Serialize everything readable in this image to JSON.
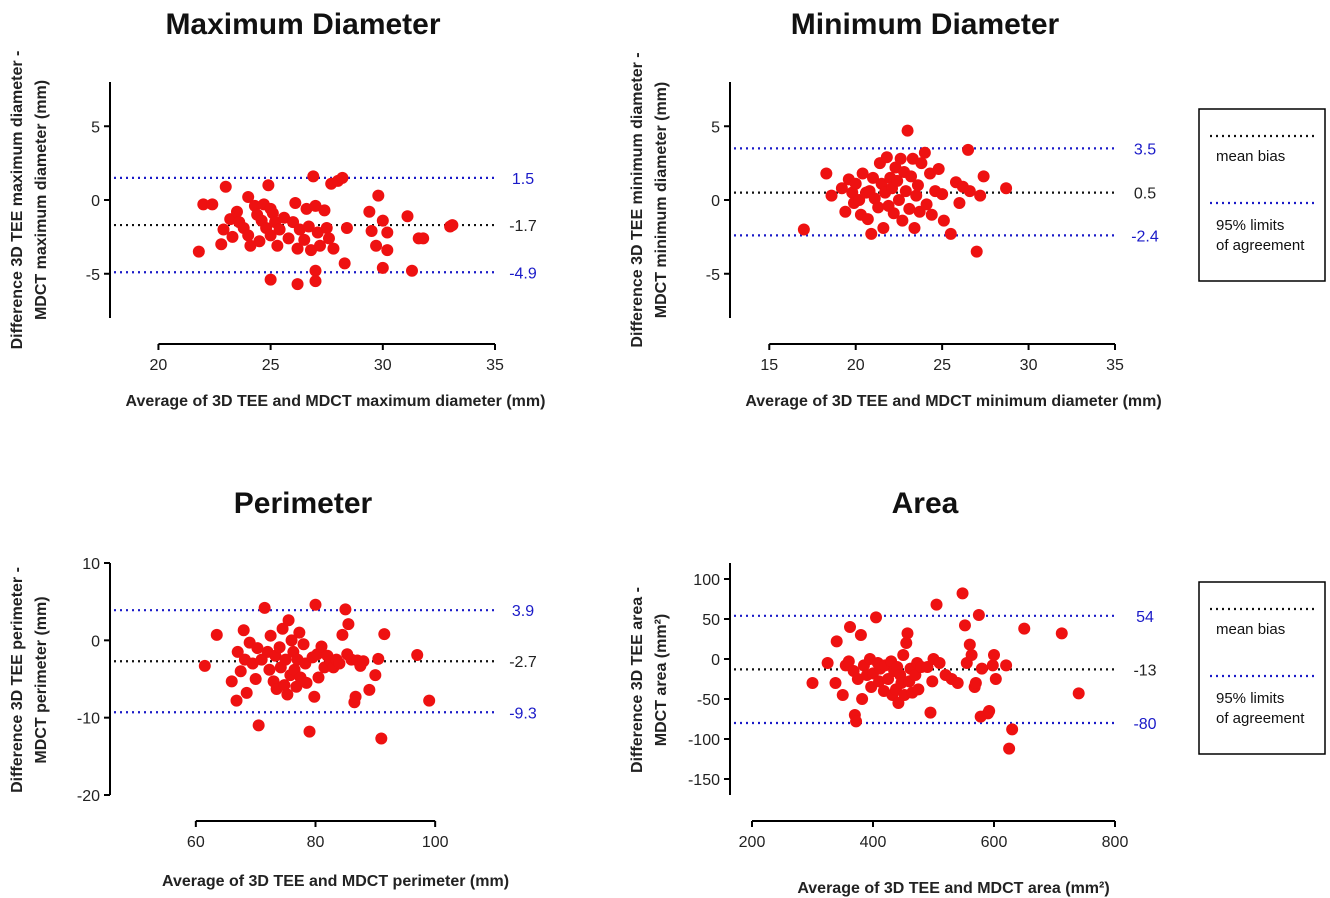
{
  "chart_data": [
    {
      "type": "scatter",
      "title": "Maximum Diameter",
      "xlabel": "Average of 3D TEE and MDCT maximum diameter (mm)",
      "ylabel": [
        "Difference 3D TEE maximum diameter -",
        "MDCT maximum diameter (mm)"
      ],
      "xlim": [
        19,
        35
      ],
      "ylim": [
        -8,
        8
      ],
      "xticks": [
        20,
        25,
        30,
        35
      ],
      "yticks": [
        5,
        0,
        -5
      ],
      "mean_bias": -1.7,
      "loa_upper": 1.5,
      "loa_lower": -4.9,
      "bias_label": "-1.7",
      "upper_label": "1.5",
      "lower_label": "-4.9",
      "points": [
        [
          22.0,
          -0.3
        ],
        [
          22.4,
          -0.3
        ],
        [
          21.8,
          -3.5
        ],
        [
          22.9,
          -2.0
        ],
        [
          22.8,
          -3.0
        ],
        [
          23.0,
          0.9
        ],
        [
          23.2,
          -1.3
        ],
        [
          23.3,
          -2.5
        ],
        [
          23.5,
          -0.8
        ],
        [
          23.6,
          -1.5
        ],
        [
          23.8,
          -1.9
        ],
        [
          24.0,
          -2.4
        ],
        [
          24.0,
          0.2
        ],
        [
          24.1,
          -3.1
        ],
        [
          24.3,
          -0.4
        ],
        [
          24.4,
          -1.0
        ],
        [
          24.5,
          -2.8
        ],
        [
          24.6,
          -1.4
        ],
        [
          24.7,
          -0.3
        ],
        [
          24.8,
          -1.9
        ],
        [
          24.9,
          1.0
        ],
        [
          25.0,
          -0.6
        ],
        [
          25.0,
          -2.4
        ],
        [
          25.1,
          -0.9
        ],
        [
          25.2,
          -1.5
        ],
        [
          25.3,
          -3.1
        ],
        [
          25.0,
          -5.4
        ],
        [
          25.4,
          -2.0
        ],
        [
          25.6,
          -1.2
        ],
        [
          25.8,
          -2.6
        ],
        [
          26.0,
          -1.5
        ],
        [
          26.1,
          -0.2
        ],
        [
          26.2,
          -3.3
        ],
        [
          26.2,
          -5.7
        ],
        [
          26.3,
          -2.0
        ],
        [
          26.5,
          -2.7
        ],
        [
          26.6,
          -0.6
        ],
        [
          26.7,
          -1.8
        ],
        [
          26.8,
          -3.4
        ],
        [
          26.9,
          1.6
        ],
        [
          27.0,
          -0.4
        ],
        [
          27.0,
          -4.8
        ],
        [
          27.1,
          -2.2
        ],
        [
          27.2,
          -3.1
        ],
        [
          27.0,
          -5.5
        ],
        [
          27.4,
          -0.7
        ],
        [
          27.5,
          -1.9
        ],
        [
          27.6,
          -2.6
        ],
        [
          27.7,
          1.1
        ],
        [
          27.8,
          -3.3
        ],
        [
          28.0,
          1.3
        ],
        [
          28.2,
          1.5
        ],
        [
          28.3,
          -4.3
        ],
        [
          28.4,
          -1.9
        ],
        [
          29.4,
          -0.8
        ],
        [
          29.5,
          -2.1
        ],
        [
          29.7,
          -3.1
        ],
        [
          29.8,
          0.3
        ],
        [
          30.0,
          -1.4
        ],
        [
          30.0,
          -4.6
        ],
        [
          30.2,
          -2.2
        ],
        [
          30.2,
          -3.4
        ],
        [
          31.1,
          -1.1
        ],
        [
          31.3,
          -4.8
        ],
        [
          31.6,
          -2.6
        ],
        [
          31.8,
          -2.6
        ],
        [
          33.0,
          -1.8
        ],
        [
          33.1,
          -1.7
        ]
      ]
    },
    {
      "type": "scatter",
      "title": "Minimum Diameter",
      "xlabel": "Average of 3D TEE and MDCT minimum diameter (mm)",
      "ylabel": [
        "Difference 3D TEE minimum diameter -",
        "MDCT minimum diameter (mm)"
      ],
      "xlim": [
        14,
        35
      ],
      "ylim": [
        -8,
        8
      ],
      "xticks": [
        15,
        20,
        25,
        30,
        35
      ],
      "yticks": [
        5,
        0,
        -5
      ],
      "mean_bias": 0.5,
      "loa_upper": 3.5,
      "loa_lower": -2.4,
      "bias_label": "0.5",
      "upper_label": "3.5",
      "lower_label": "-2.4",
      "points": [
        [
          17.0,
          -2.0
        ],
        [
          18.3,
          1.8
        ],
        [
          18.6,
          0.3
        ],
        [
          19.2,
          0.8
        ],
        [
          19.4,
          -0.8
        ],
        [
          19.6,
          1.4
        ],
        [
          19.8,
          0.5
        ],
        [
          19.9,
          -0.2
        ],
        [
          20.0,
          1.1
        ],
        [
          20.2,
          0.0
        ],
        [
          20.3,
          -1.0
        ],
        [
          20.4,
          1.8
        ],
        [
          20.6,
          0.5
        ],
        [
          20.7,
          -1.3
        ],
        [
          20.8,
          0.6
        ],
        [
          20.9,
          -2.3
        ],
        [
          21.0,
          1.5
        ],
        [
          21.1,
          0.1
        ],
        [
          21.3,
          -0.5
        ],
        [
          21.4,
          2.5
        ],
        [
          21.5,
          1.1
        ],
        [
          21.6,
          -1.9
        ],
        [
          21.7,
          0.5
        ],
        [
          21.8,
          2.9
        ],
        [
          21.9,
          -0.4
        ],
        [
          22.0,
          1.5
        ],
        [
          22.1,
          0.8
        ],
        [
          22.2,
          -0.9
        ],
        [
          22.3,
          2.2
        ],
        [
          22.4,
          1.3
        ],
        [
          22.5,
          0.0
        ],
        [
          22.6,
          2.8
        ],
        [
          22.7,
          -1.4
        ],
        [
          22.8,
          1.9
        ],
        [
          22.9,
          0.6
        ],
        [
          23.0,
          4.7
        ],
        [
          23.1,
          -0.6
        ],
        [
          23.2,
          1.6
        ],
        [
          23.3,
          2.8
        ],
        [
          23.4,
          -1.9
        ],
        [
          23.5,
          0.3
        ],
        [
          23.6,
          1.0
        ],
        [
          23.7,
          -0.8
        ],
        [
          23.8,
          2.5
        ],
        [
          24.0,
          3.2
        ],
        [
          24.1,
          -0.3
        ],
        [
          24.3,
          1.8
        ],
        [
          24.4,
          -1.0
        ],
        [
          24.6,
          0.6
        ],
        [
          24.8,
          2.1
        ],
        [
          25.0,
          0.4
        ],
        [
          25.1,
          -1.4
        ],
        [
          25.5,
          -2.3
        ],
        [
          25.8,
          1.2
        ],
        [
          26.0,
          -0.2
        ],
        [
          26.2,
          0.9
        ],
        [
          26.5,
          3.4
        ],
        [
          26.6,
          0.6
        ],
        [
          27.0,
          -3.5
        ],
        [
          27.2,
          0.3
        ],
        [
          27.4,
          1.6
        ],
        [
          28.7,
          0.8
        ]
      ]
    },
    {
      "type": "scatter",
      "title": "Perimeter",
      "xlabel": "Average of 3D TEE and MDCT perimeter (mm)",
      "ylabel": [
        "Difference 3D TEE perimeter -",
        "MDCT perimeter (mm)"
      ],
      "xlim": [
        50,
        110
      ],
      "ylim": [
        -20,
        10
      ],
      "xticks": [
        60,
        80,
        100
      ],
      "yticks": [
        10,
        0,
        -10,
        -20
      ],
      "mean_bias": -2.7,
      "loa_upper": 3.9,
      "loa_lower": -9.3,
      "bias_label": "-2.7",
      "upper_label": "3.9",
      "lower_label": "-9.3",
      "points": [
        [
          61.5,
          -3.3
        ],
        [
          63.5,
          0.7
        ],
        [
          66.0,
          -5.3
        ],
        [
          66.8,
          -7.8
        ],
        [
          67.0,
          -1.5
        ],
        [
          67.5,
          -4.0
        ],
        [
          68.0,
          1.3
        ],
        [
          68.2,
          -2.5
        ],
        [
          68.5,
          -6.8
        ],
        [
          69.0,
          -0.3
        ],
        [
          69.5,
          -3.0
        ],
        [
          70.0,
          -5.0
        ],
        [
          70.3,
          -1.0
        ],
        [
          70.5,
          -11.0
        ],
        [
          71.0,
          -2.5
        ],
        [
          71.5,
          4.2
        ],
        [
          72.0,
          -1.5
        ],
        [
          72.3,
          -3.8
        ],
        [
          72.5,
          0.6
        ],
        [
          73.0,
          -5.3
        ],
        [
          73.3,
          -2.0
        ],
        [
          73.5,
          -6.3
        ],
        [
          74.0,
          -0.9
        ],
        [
          74.2,
          -3.5
        ],
        [
          74.5,
          1.5
        ],
        [
          74.8,
          -5.8
        ],
        [
          75.0,
          -2.5
        ],
        [
          75.3,
          -7.0
        ],
        [
          75.5,
          2.6
        ],
        [
          75.8,
          -4.5
        ],
        [
          76.0,
          0.0
        ],
        [
          76.3,
          -1.5
        ],
        [
          76.5,
          -3.8
        ],
        [
          76.8,
          -6.0
        ],
        [
          77.0,
          -2.5
        ],
        [
          77.3,
          1.0
        ],
        [
          77.5,
          -4.8
        ],
        [
          78.0,
          -0.5
        ],
        [
          78.3,
          -3.0
        ],
        [
          78.5,
          -5.5
        ],
        [
          79.0,
          -11.8
        ],
        [
          79.5,
          -2.2
        ],
        [
          79.8,
          -7.3
        ],
        [
          80.0,
          4.6
        ],
        [
          80.3,
          -1.8
        ],
        [
          80.5,
          -4.8
        ],
        [
          81.0,
          -0.8
        ],
        [
          81.5,
          -3.5
        ],
        [
          82.0,
          -2.0
        ],
        [
          82.5,
          -2.7
        ],
        [
          83.0,
          -3.5
        ],
        [
          83.5,
          -2.5
        ],
        [
          84.0,
          -3.0
        ],
        [
          84.5,
          0.7
        ],
        [
          85.0,
          4.0
        ],
        [
          85.3,
          -1.8
        ],
        [
          85.5,
          2.1
        ],
        [
          86.0,
          -2.5
        ],
        [
          86.5,
          -8.0
        ],
        [
          86.7,
          -7.3
        ],
        [
          87.0,
          -2.6
        ],
        [
          87.5,
          -3.3
        ],
        [
          88.0,
          -2.7
        ],
        [
          89.0,
          -6.4
        ],
        [
          90.0,
          -4.5
        ],
        [
          90.5,
          -2.4
        ],
        [
          91.0,
          -12.7
        ],
        [
          91.5,
          0.8
        ],
        [
          97.0,
          -1.9
        ],
        [
          99.0,
          -7.8
        ]
      ]
    },
    {
      "type": "scatter",
      "title": "Area",
      "xlabel": "Average of 3D TEE and MDCT area (mm²)",
      "ylabel": [
        "Difference 3D TEE area -",
        "MDCT area (mm²)"
      ],
      "xlim": [
        200,
        800
      ],
      "ylim": [
        -170,
        120
      ],
      "xticks": [
        200,
        400,
        600,
        800
      ],
      "yticks": [
        100,
        50,
        0,
        -50,
        -100,
        -150
      ],
      "mean_bias": -13,
      "loa_upper": 54,
      "loa_lower": -80,
      "bias_label": "-13",
      "upper_label": "54",
      "lower_label": "-80",
      "points": [
        [
          300,
          -30
        ],
        [
          325,
          -5
        ],
        [
          338,
          -30
        ],
        [
          340,
          22
        ],
        [
          350,
          -45
        ],
        [
          355,
          -8
        ],
        [
          360,
          -3
        ],
        [
          362,
          40
        ],
        [
          368,
          -15
        ],
        [
          370,
          -70
        ],
        [
          372,
          -78
        ],
        [
          375,
          -25
        ],
        [
          380,
          30
        ],
        [
          382,
          -50
        ],
        [
          385,
          -8
        ],
        [
          390,
          -20
        ],
        [
          395,
          0
        ],
        [
          397,
          -35
        ],
        [
          400,
          -18
        ],
        [
          405,
          52
        ],
        [
          408,
          -5
        ],
        [
          410,
          -28
        ],
        [
          412,
          -12
        ],
        [
          418,
          -40
        ],
        [
          420,
          -8
        ],
        [
          425,
          -25
        ],
        [
          430,
          -3
        ],
        [
          432,
          -45
        ],
        [
          435,
          -15
        ],
        [
          438,
          -38
        ],
        [
          440,
          -10
        ],
        [
          442,
          -55
        ],
        [
          445,
          -20
        ],
        [
          447,
          -30
        ],
        [
          450,
          5
        ],
        [
          452,
          -45
        ],
        [
          455,
          20
        ],
        [
          457,
          32
        ],
        [
          460,
          -28
        ],
        [
          462,
          -12
        ],
        [
          465,
          -42
        ],
        [
          470,
          -20
        ],
        [
          473,
          -5
        ],
        [
          475,
          -38
        ],
        [
          480,
          -10
        ],
        [
          490,
          -10
        ],
        [
          495,
          -67
        ],
        [
          498,
          -28
        ],
        [
          500,
          0
        ],
        [
          505,
          68
        ],
        [
          510,
          -5
        ],
        [
          520,
          -20
        ],
        [
          530,
          -25
        ],
        [
          540,
          -30
        ],
        [
          548,
          82
        ],
        [
          552,
          42
        ],
        [
          555,
          -5
        ],
        [
          560,
          18
        ],
        [
          563,
          5
        ],
        [
          568,
          -35
        ],
        [
          570,
          -30
        ],
        [
          575,
          55
        ],
        [
          578,
          -72
        ],
        [
          580,
          -12
        ],
        [
          590,
          -68
        ],
        [
          592,
          -65
        ],
        [
          598,
          -8
        ],
        [
          600,
          5
        ],
        [
          603,
          -25
        ],
        [
          620,
          -8
        ],
        [
          625,
          -112
        ],
        [
          630,
          -88
        ],
        [
          650,
          38
        ],
        [
          712,
          32
        ],
        [
          740,
          -43
        ]
      ]
    }
  ],
  "legend": {
    "mean_label": "mean bias",
    "loa_label_line1": "95% limits",
    "loa_label_line2": "of agreement"
  },
  "colors": {
    "points": "#ee1111",
    "bias": "#111111",
    "loa": "#1a1ac8"
  }
}
